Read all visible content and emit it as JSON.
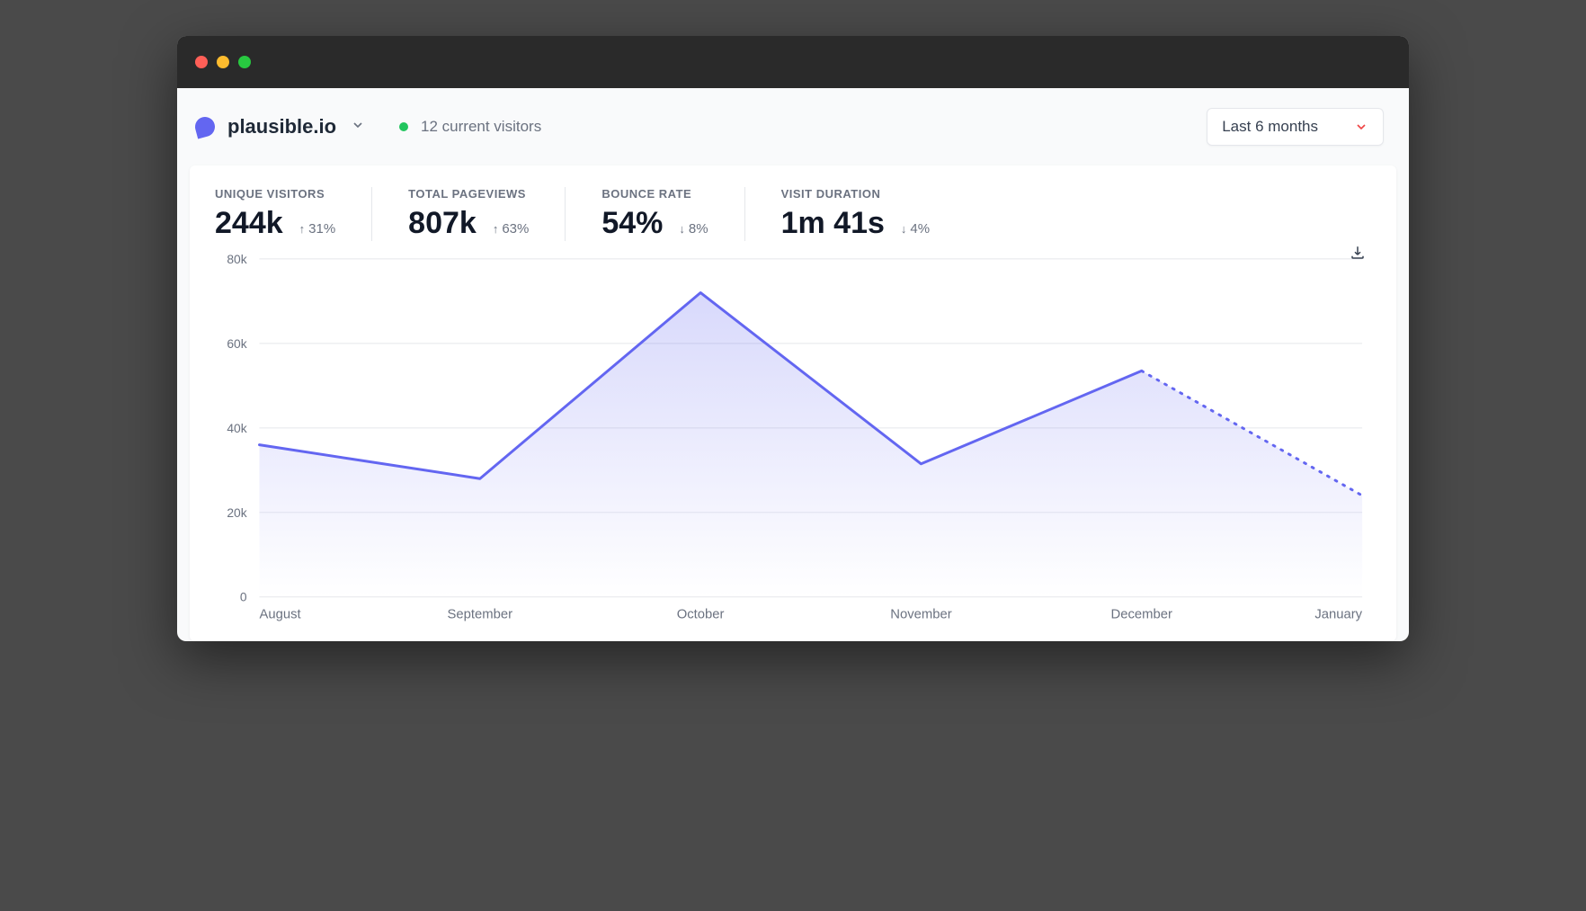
{
  "site": {
    "name": "plausible.io",
    "logo_color": "#6366f1"
  },
  "live": {
    "text": "12 current visitors",
    "dot_color": "#22c55e"
  },
  "range_picker": {
    "label": "Last 6 months",
    "caret_color": "#ef4444"
  },
  "stats": [
    {
      "label": "UNIQUE VISITORS",
      "value": "244k",
      "change": "31%",
      "dir": "up"
    },
    {
      "label": "TOTAL PAGEVIEWS",
      "value": "807k",
      "change": "63%",
      "dir": "up"
    },
    {
      "label": "BOUNCE RATE",
      "value": "54%",
      "change": "8%",
      "dir": "down"
    },
    {
      "label": "VISIT DURATION",
      "value": "1m 41s",
      "change": "4%",
      "dir": "down"
    }
  ],
  "chart": {
    "type": "area",
    "line_color": "#6366f1",
    "fill_color": "#6366f1",
    "fill_opacity": 0.15,
    "line_width": 3,
    "grid_color": "#e5e7eb",
    "background_color": "#ffffff",
    "x_labels": [
      "August",
      "September",
      "October",
      "November",
      "December",
      "January"
    ],
    "y_ticks": [
      0,
      "20k",
      "40k",
      "60k",
      "80k"
    ],
    "y_values": [
      0,
      20000,
      40000,
      60000,
      80000
    ],
    "ylim": [
      0,
      80000
    ],
    "series": [
      36000,
      28000,
      72000,
      31500,
      53500,
      24000
    ],
    "last_segment_dashed": true,
    "dash_pattern": "2 8"
  },
  "colors": {
    "text_primary": "#111827",
    "text_secondary": "#6b7280",
    "border": "#e5e7eb",
    "page_bg": "#f9fafb",
    "titlebar_bg": "#2a2a2a"
  },
  "traffic_lights": {
    "red": "#ff5f57",
    "yellow": "#febc2e",
    "green": "#28c840"
  }
}
